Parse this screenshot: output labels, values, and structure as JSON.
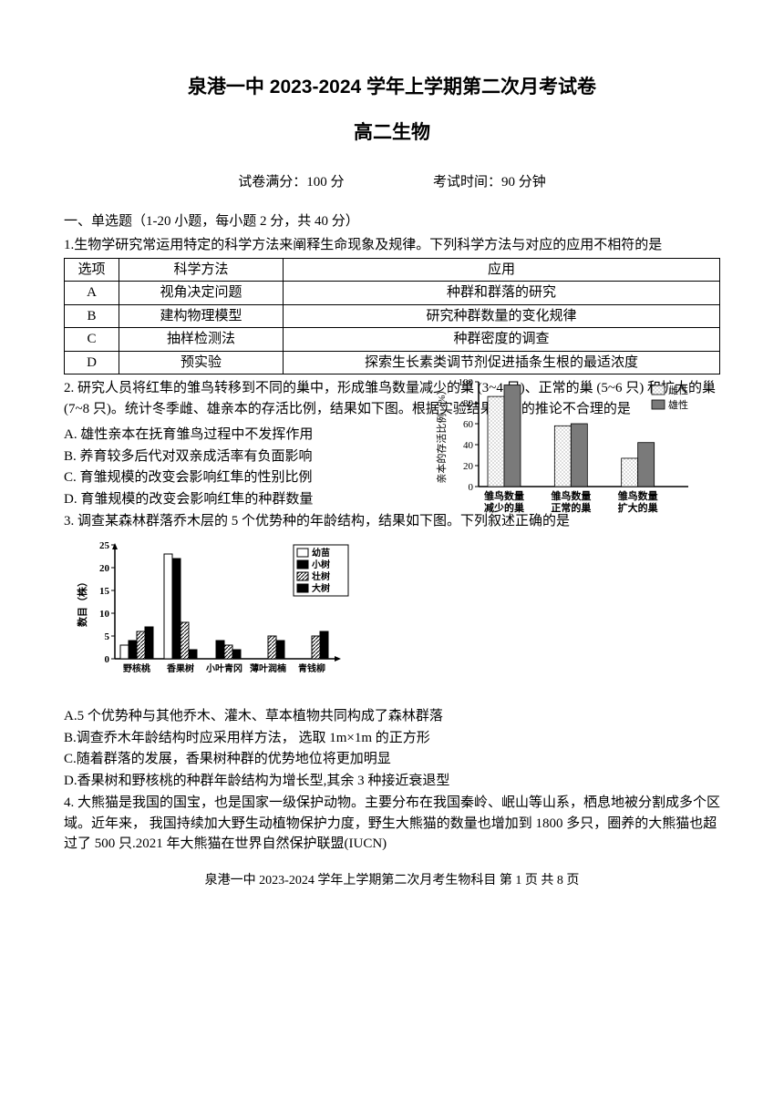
{
  "header": {
    "title1": "泉港一中 2023-2024 学年上学期第二次月考试卷",
    "title2": "高二生物",
    "score_label": "试卷满分：100 分",
    "time_label": "考试时间：90 分钟"
  },
  "section1": {
    "heading": "一、单选题（1-20 小题，每小题 2 分，共 40 分）"
  },
  "q1": {
    "stem": "1.生物学研究常运用特定的科学方法来阐释生命现象及规律。下列科学方法与对应的应用不相符的是",
    "table": {
      "headers": [
        "选项",
        "科学方法",
        "应用"
      ],
      "rows": [
        [
          "A",
          "视角决定问题",
          "种群和群落的研究"
        ],
        [
          "B",
          "建构物理模型",
          "研究种群数量的变化规律"
        ],
        [
          "C",
          "抽样检测法",
          "种群密度的调查"
        ],
        [
          "D",
          "预实验",
          "探索生长素类调节剂促进插条生根的最适浓度"
        ]
      ],
      "col_widths": [
        "60px",
        "180px",
        "auto"
      ]
    }
  },
  "q2": {
    "stem": "2. 研究人员将红隼的雏鸟转移到不同的巢中，形成雏鸟数量减少的巢 (3~4 只)、正常的巢 (5~6 只) 和扩大的巢 (7~8 只)。统计冬季雌、雄亲本的存活比例，结果如下图。根据实验结果作出的推论不合理的是",
    "opts": {
      "A": "A. 雄性亲本在抚育雏鸟过程中不发挥作用",
      "B": "B. 养育较多后代对双亲成活率有负面影响",
      "C": "C. 育雏规模的改变会影响红隼的性别比例",
      "D": "D. 育雏规模的改变会影响红隼的种群数量"
    },
    "chart": {
      "type": "bar",
      "ylabel": "亲本的存活比例（%）",
      "ylim": [
        0,
        100
      ],
      "ytick_step": 20,
      "categories": [
        "雏鸟数量\n减少的巢",
        "雏鸟数量\n正常的巢",
        "雏鸟数量\n扩大的巢"
      ],
      "series": [
        {
          "name": "雌性",
          "fill": "pattern-gray",
          "values": [
            86,
            58,
            27
          ]
        },
        {
          "name": "雄性",
          "fill": "solid-gray",
          "values": [
            97,
            60,
            42
          ]
        }
      ],
      "legend": [
        "雌性",
        "雄性"
      ],
      "pattern_color": "#888888",
      "solid_color": "#7a7a7a",
      "axis_color": "#000000",
      "background_color": "#ffffff",
      "bar_width": 0.35,
      "label_fontsize": 11
    }
  },
  "q3": {
    "stem": "3. 调查某森林群落乔木层的 5 个优势种的年龄结构，结果如下图。下列叙述正确的是",
    "chart": {
      "type": "bar",
      "ylabel": "数目（株）",
      "ylim": [
        0,
        25
      ],
      "ytick_step": 5,
      "categories": [
        "野核桃",
        "香果树",
        "小叶青冈",
        "薄叶润楠",
        "青钱柳"
      ],
      "series": [
        {
          "name": "幼苗",
          "fill": "white",
          "values": [
            3,
            23,
            0,
            0,
            0
          ]
        },
        {
          "name": "小树",
          "fill": "black",
          "values": [
            4,
            22,
            4,
            0,
            0
          ]
        },
        {
          "name": "壮树",
          "fill": "hatch",
          "values": [
            6,
            8,
            3,
            5,
            5
          ]
        },
        {
          "name": "大树",
          "fill": "black2",
          "values": [
            7,
            2,
            2,
            4,
            6
          ]
        }
      ],
      "legend": [
        "幼苗",
        "小树",
        "壮树",
        "大树"
      ],
      "colors": {
        "white": "#ffffff",
        "black": "#000000",
        "hatch": "#555555",
        "black2": "#000000"
      },
      "axis_color": "#000000",
      "background_color": "#ffffff",
      "bar_width": 0.2,
      "label_fontsize": 11
    },
    "opts": {
      "A": "A.5 个优势种与其他乔木、灌木、草本植物共同构成了森林群落",
      "B": "B.调查乔木年龄结构时应采用样方法， 选取 1m×1m 的正方形",
      "C": "C.随着群落的发展，香果树种群的优势地位将更加明显",
      "D": "D.香果树和野核桃的种群年龄结构为增长型,其余 3 种接近衰退型"
    }
  },
  "q4": {
    "stem": "4. 大熊猫是我国的国宝，也是国家一级保护动物。主要分布在我国秦岭、岷山等山系，栖息地被分割成多个区域。近年来， 我国持续加大野生动植物保护力度，野生大熊猫的数量也增加到 1800 多只，圈养的大熊猫也超过了 500 只.2021 年大熊猫在世界自然保护联盟(IUCN)"
  },
  "footer": "泉港一中 2023-2024 学年上学期第二次月考生物科目 第 1 页 共 8 页"
}
